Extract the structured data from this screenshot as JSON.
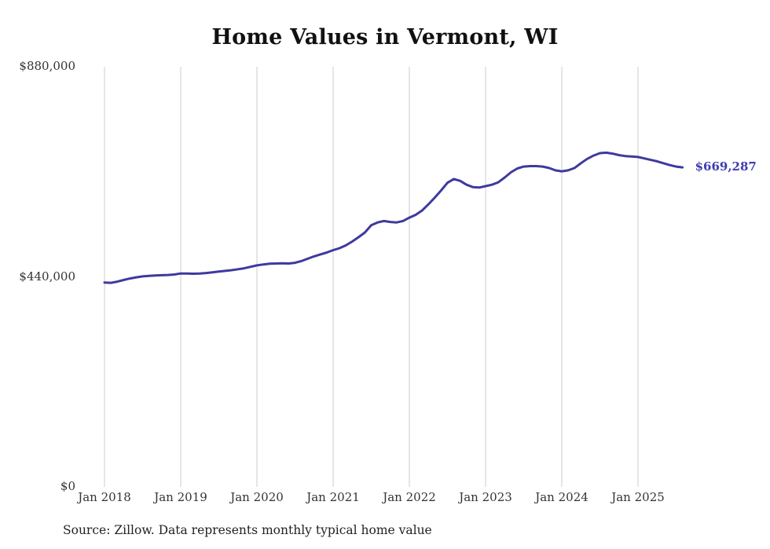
{
  "title": "Home Values in Vermont, WI",
  "source_note": "Source: Zillow. Data represents monthly typical home value",
  "end_label": "$669,287",
  "colors": {
    "line": "#3e3a9e",
    "end_label": "#3d3dae",
    "gridline": "#cccccc",
    "title_text": "#111111",
    "axis_text": "#333333"
  },
  "chart_data": {
    "type": "line",
    "title": "Home Values in Vermont, WI",
    "x_tick_labels": [
      "Jan 2018",
      "Jan 2019",
      "Jan 2020",
      "Jan 2021",
      "Jan 2022",
      "Jan 2023",
      "Jan 2024",
      "Jan 2025"
    ],
    "y_tick_labels": [
      "$0",
      "$440,000",
      "$880,000"
    ],
    "y_tick_values": [
      0,
      440000,
      880000
    ],
    "ylim": [
      0,
      880000
    ],
    "grid": "vertical-yearly",
    "legend": "none",
    "x_start": "Jan 2018",
    "x_end": "Aug 2025",
    "x_cadence": "monthly",
    "end_value": 669287,
    "series": [
      {
        "name": "Typical home value",
        "values": [
          428000,
          427500,
          430000,
          433500,
          436500,
          439000,
          441000,
          442000,
          443000,
          443500,
          444000,
          445000,
          447000,
          447000,
          446500,
          447000,
          448000,
          449500,
          451000,
          452500,
          454000,
          456000,
          458000,
          461000,
          464000,
          466000,
          467500,
          468000,
          468500,
          468000,
          469500,
          473000,
          478000,
          483000,
          487000,
          491000,
          496000,
          500000,
          506000,
          514000,
          523000,
          533000,
          548000,
          554000,
          557000,
          555000,
          554000,
          557000,
          564000,
          570000,
          579000,
          592000,
          606000,
          621000,
          637000,
          645000,
          641000,
          633000,
          628000,
          627000,
          630000,
          633000,
          638000,
          648000,
          659000,
          667000,
          671000,
          672000,
          672000,
          671000,
          668000,
          663000,
          661000,
          663000,
          668000,
          678000,
          687000,
          694000,
          699000,
          700000,
          698000,
          695000,
          693000,
          692000,
          691000,
          688000,
          685000,
          682000,
          678000,
          674000,
          671000,
          669287
        ]
      }
    ]
  }
}
